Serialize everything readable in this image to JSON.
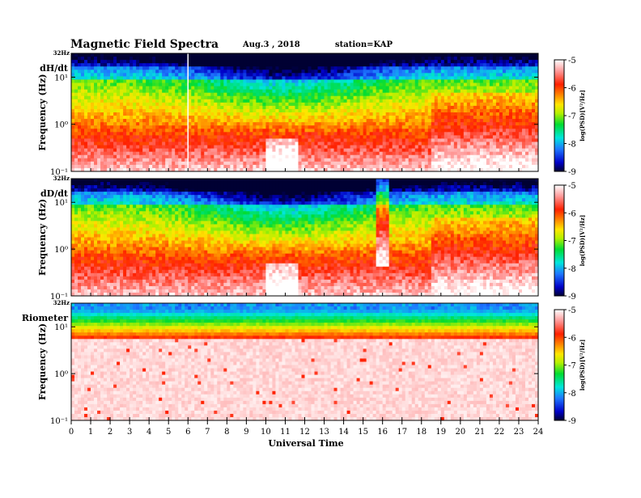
{
  "header": {
    "title": "Magnetic Field Spectra",
    "date": "Aug.3 , 2018",
    "station": "station=KAP"
  },
  "colors": {
    "cmap": [
      "#000033",
      "#0000c8",
      "#1e78ff",
      "#00e6dc",
      "#00dc32",
      "#b4f000",
      "#ffe600",
      "#ff8c00",
      "#ff2000",
      "#ff9a9a",
      "#ffffff"
    ]
  },
  "chart_data": [
    {
      "type": "heatmap",
      "panel_label": "dH/dt",
      "ylabel": "Frequency (Hz)",
      "y_scale": "log",
      "y_top_label": "32Hz",
      "ytick_labels": [
        "10¹",
        "10⁰",
        "10⁻¹"
      ],
      "x_range": [
        0,
        24
      ],
      "colorbar": {
        "label": "log(PSD)[V²/Hz]",
        "range": [
          -9,
          -5
        ],
        "tick_labels": [
          "-5",
          "-6",
          "-7",
          "-8",
          "-9"
        ]
      }
    },
    {
      "type": "heatmap",
      "panel_label": "dD/dt",
      "ylabel": "Frequency (Hz)",
      "y_scale": "log",
      "y_top_label": "32Hz",
      "ytick_labels": [
        "10¹",
        "10⁰",
        "10⁻¹"
      ],
      "x_range": [
        0,
        24
      ],
      "colorbar": {
        "label": "log(PSD)[V²/Hz]",
        "range": [
          -9,
          -5
        ],
        "tick_labels": [
          "-5",
          "-6",
          "-7",
          "-8",
          "-9"
        ]
      }
    },
    {
      "type": "heatmap",
      "panel_label": "Riometer",
      "ylabel": "Frequency (Hz)",
      "y_scale": "log",
      "y_top_label": "32Hz",
      "ytick_labels": [
        "10¹",
        "10⁰",
        "10⁻¹"
      ],
      "x_range": [
        0,
        24
      ],
      "colorbar": {
        "label": "log(PSD)[V²/Hz]",
        "range": [
          -9,
          -5
        ],
        "tick_labels": [
          "-5",
          "-6",
          "-7",
          "-8",
          "-9"
        ]
      }
    }
  ],
  "xaxis": {
    "label": "Universal Time",
    "ticks": [
      0,
      1,
      2,
      3,
      4,
      5,
      6,
      7,
      8,
      9,
      10,
      11,
      12,
      13,
      14,
      15,
      16,
      17,
      18,
      19,
      20,
      21,
      22,
      23,
      24
    ]
  }
}
